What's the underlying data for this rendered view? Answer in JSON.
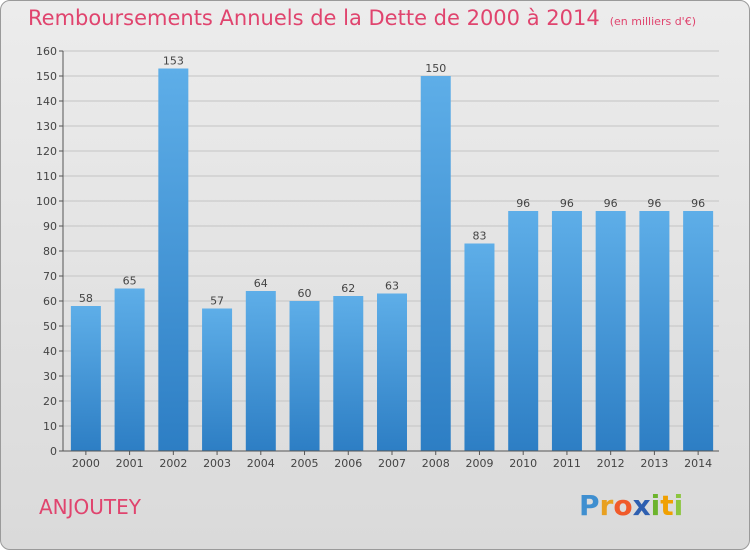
{
  "chart_data": {
    "type": "bar",
    "title": "Remboursements Annuels de la Dette de 2000 à 2014",
    "unit": "(en milliers d'€)",
    "categories": [
      "2000",
      "2001",
      "2002",
      "2003",
      "2004",
      "2005",
      "2006",
      "2007",
      "2008",
      "2009",
      "2010",
      "2011",
      "2012",
      "2013",
      "2014"
    ],
    "values": [
      58,
      65,
      153,
      57,
      64,
      60,
      62,
      63,
      150,
      83,
      96,
      96,
      96,
      96,
      96
    ],
    "data_labels": [
      "58",
      "65",
      "153",
      "57",
      "64",
      "60",
      "62",
      "63",
      "150",
      "83",
      "96",
      "96",
      "96",
      "96",
      "96"
    ],
    "ylim": [
      0,
      160
    ],
    "yticks": [
      "0",
      "10",
      "20",
      "30",
      "40",
      "50",
      "60",
      "70",
      "80",
      "90",
      "100",
      "110",
      "120",
      "130",
      "140",
      "150",
      "160"
    ],
    "grid": true,
    "bar_color": "#4a98d6"
  },
  "footer": {
    "commune": "ANJOUTEY",
    "brand_letters": [
      {
        "ch": "P",
        "color": "#3f8fd0"
      },
      {
        "ch": "r",
        "color": "#e8a020"
      },
      {
        "ch": "o",
        "color": "#f05a2a"
      },
      {
        "ch": "x",
        "color": "#2e5fb0"
      },
      {
        "ch": "i",
        "color": "#6cb42c"
      },
      {
        "ch": "t",
        "color": "#f0a000"
      },
      {
        "ch": "i",
        "color": "#8cc63f"
      }
    ]
  }
}
